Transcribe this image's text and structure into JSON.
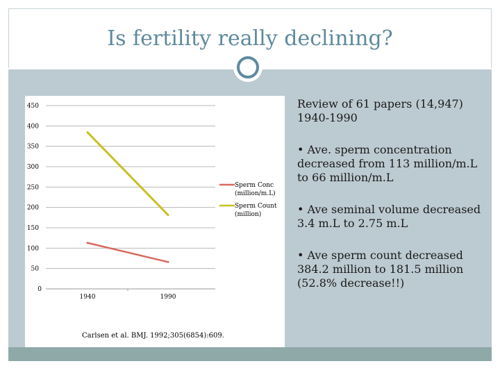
{
  "slide": {
    "title": "Is fertility really declining?",
    "review_line1": "Review of 61 papers (14,947)",
    "review_line2": "1940-1990",
    "bullets": [
      "• Ave. sperm concentration decreased from 113 million/m.L to 66 million/m.L",
      "• Ave seminal volume decreased 3.4 m.L to 2.75 m.L",
      "• Ave sperm count decreased 384.2 million to 181.5 million (52.8% decrease!!)"
    ],
    "citation": "Carlsen et al. BMJ. 1992;305(6854):609."
  },
  "colors": {
    "title": "#5e8a9c",
    "band": "#bccad1",
    "conc_series": "#d9695f",
    "count_series": "#c8c020"
  },
  "chart_data": {
    "type": "line",
    "title": "",
    "xlabel": "",
    "ylabel": "",
    "categories": [
      "1940",
      "1990"
    ],
    "ylim": [
      0,
      450
    ],
    "yticks": [
      0,
      50,
      100,
      150,
      200,
      250,
      300,
      350,
      400,
      450
    ],
    "grid": true,
    "series": [
      {
        "name": "Sperm Conc (million/m.L)",
        "values": [
          113,
          66
        ],
        "color": "#d9695f"
      },
      {
        "name": "Sperm Count (million)",
        "values": [
          384.2,
          181.5
        ],
        "color": "#c8c020"
      }
    ],
    "legend": "right"
  }
}
